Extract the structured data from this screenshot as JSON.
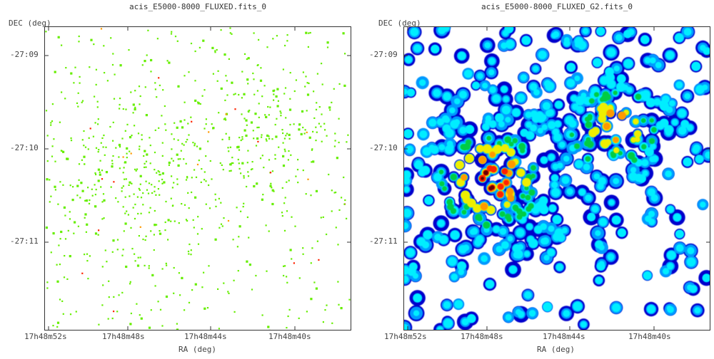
{
  "panels": [
    {
      "title": "acis_E5000-8000_FLUXED.fits_0",
      "ylabel": "DEC (deg)",
      "xlabel": "RA (deg)",
      "yticks": [
        "-27:09",
        "-27:10",
        "-27:11"
      ],
      "xticks": [
        "17h48m52s",
        "17h48m48s",
        "17h48m44s",
        "17h48m40s"
      ],
      "colormap": [
        "#66ee00",
        "#ff9900",
        "#ff2200"
      ]
    },
    {
      "title": "acis_E5000-8000_FLUXED_G2.fits_0",
      "ylabel": "DEC (deg)",
      "xlabel": "RA (deg)",
      "yticks": [
        "-27:09",
        "-27:10",
        "-27:11"
      ],
      "xticks": [
        "17h48m52s",
        "17h48m48s",
        "17h48m44s",
        "17h48m40s"
      ],
      "colormap": [
        "#0000cc",
        "#0099ff",
        "#00eeff",
        "#00cc44",
        "#eeee00",
        "#ff9900",
        "#ff2200",
        "#660000"
      ]
    }
  ]
}
